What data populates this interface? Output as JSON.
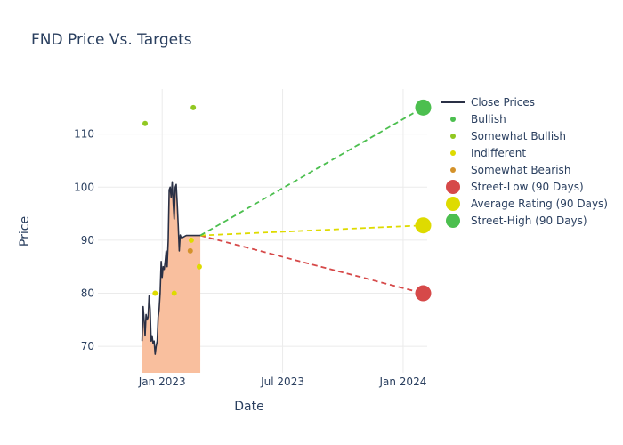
{
  "chart_data": {
    "type": "line",
    "title": "FND Price Vs. Targets",
    "xlabel": "Date",
    "ylabel": "Price",
    "ylim": [
      65,
      118.5
    ],
    "xlim_month_index": [
      -3.2,
      13.2
    ],
    "y_ticks": [
      {
        "value": 70,
        "label": "70"
      },
      {
        "value": 80,
        "label": "80"
      },
      {
        "value": 90,
        "label": "90"
      },
      {
        "value": 100,
        "label": "100"
      },
      {
        "value": 110,
        "label": "110"
      }
    ],
    "x_ticks": [
      {
        "month_index": 0,
        "label": "Jan 2023"
      },
      {
        "month_index": 6,
        "label": "Jul 2023"
      },
      {
        "month_index": 12,
        "label": "Jan 2024"
      }
    ],
    "close_prices": {
      "name": "Close Prices",
      "color": "#2a3045",
      "fill_color": "#f9bf9e",
      "x_month_index": [
        -1.0,
        -0.95,
        -0.9,
        -0.85,
        -0.8,
        -0.75,
        -0.7,
        -0.65,
        -0.6,
        -0.55,
        -0.5,
        -0.45,
        -0.4,
        -0.35,
        -0.3,
        -0.25,
        -0.2,
        -0.15,
        -0.1,
        -0.05,
        0.0,
        0.05,
        0.1,
        0.15,
        0.2,
        0.25,
        0.3,
        0.35,
        0.4,
        0.45,
        0.5,
        0.55,
        0.6,
        0.65,
        0.7,
        0.75,
        0.8,
        0.85,
        0.9,
        0.95,
        1.0,
        1.05,
        1.1,
        1.15,
        1.2,
        1.25,
        1.3,
        1.35,
        1.4,
        1.45,
        1.5,
        1.55,
        1.6,
        1.65,
        1.7,
        1.75,
        1.8,
        1.85,
        1.9
      ],
      "values": [
        71,
        77.5,
        75,
        72,
        76,
        75,
        75.5,
        79.5,
        77,
        71,
        72,
        70.5,
        71,
        68.5,
        70,
        71,
        75.5,
        77,
        80,
        86,
        83,
        85,
        84.5,
        86,
        88,
        85,
        90,
        99.5,
        100,
        98,
        101,
        97,
        94,
        100,
        100.5,
        97,
        93,
        88,
        91,
        90.5,
        90.5,
        90.6,
        90.7,
        90.8,
        90.9,
        90.9,
        90.9,
        90.9,
        90.9,
        90.9,
        90.9,
        90.9,
        90.9,
        90.9,
        90.9,
        90.9,
        90.9,
        90.9,
        90.9
      ]
    },
    "analyst_points": [
      {
        "rating": "Bullish",
        "color": "#4cbf4f",
        "points": []
      },
      {
        "rating": "Somewhat Bullish",
        "color": "#91c821",
        "points": [
          {
            "x_month_index": -0.85,
            "value": 112
          },
          {
            "x_month_index": 1.55,
            "value": 115
          }
        ]
      },
      {
        "rating": "Indifferent",
        "color": "#dedb00",
        "points": [
          {
            "x_month_index": -0.35,
            "value": 80
          },
          {
            "x_month_index": 0.6,
            "value": 80
          },
          {
            "x_month_index": 1.45,
            "value": 90
          },
          {
            "x_month_index": 1.85,
            "value": 85
          }
        ]
      },
      {
        "rating": "Somewhat Bearish",
        "color": "#d4922a",
        "points": [
          {
            "x_month_index": 1.4,
            "value": 88
          }
        ]
      }
    ],
    "targets": {
      "origin": {
        "x_month_index": 1.9,
        "value": 90.9
      },
      "end_x_month_index": 13.0,
      "series": [
        {
          "name": "Street-Low (90 Days)",
          "value": 80,
          "color": "#d64949"
        },
        {
          "name": "Average Rating (90 Days)",
          "value": 92.8,
          "color": "#dedb00"
        },
        {
          "name": "Street-High (90 Days)",
          "value": 115,
          "color": "#4cbf4f"
        }
      ]
    },
    "legend": {
      "position": "right",
      "entries": [
        {
          "label": "Close Prices",
          "kind": "line",
          "color": "#2a3045"
        },
        {
          "label": "Bullish",
          "kind": "dot",
          "color": "#4cbf4f"
        },
        {
          "label": "Somewhat Bullish",
          "kind": "dot",
          "color": "#91c821"
        },
        {
          "label": "Indifferent",
          "kind": "dot",
          "color": "#dedb00"
        },
        {
          "label": "Somewhat Bearish",
          "kind": "dot",
          "color": "#d4922a"
        },
        {
          "label": "Street-Low (90 Days)",
          "kind": "bigdot",
          "color": "#d64949"
        },
        {
          "label": "Average Rating (90 Days)",
          "kind": "bigdot",
          "color": "#dedb00"
        },
        {
          "label": "Street-High (90 Days)",
          "kind": "bigdot",
          "color": "#4cbf4f"
        }
      ]
    }
  }
}
